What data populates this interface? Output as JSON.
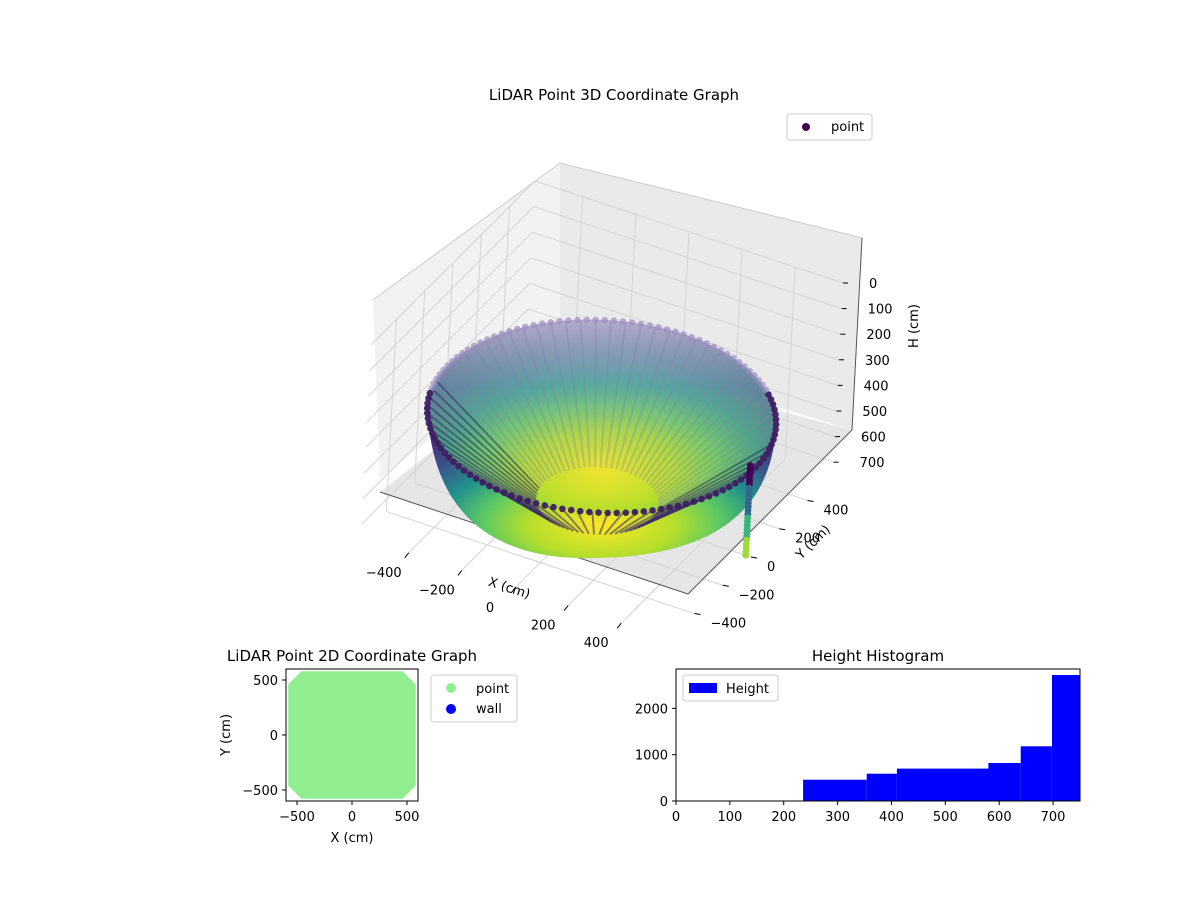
{
  "colors": {
    "viridis_light": "#fde725",
    "viridis_mid": "#21918c",
    "viridis_dark": "#440154",
    "floor_green": "#90ee90",
    "wall_blue": "#0000ff",
    "hist_blue": "#0000ff",
    "pane": "#f2f2f2",
    "grid": "#cfcfcf"
  },
  "chart_data": [
    {
      "type": "scatter",
      "projection": "3d",
      "title": "LiDAR Point 3D Coordinate Graph",
      "xlabel": "X (cm)",
      "ylabel": "Y (cm)",
      "zlabel": "H (cm)",
      "x_ticks": [
        "−400",
        "−200",
        "0",
        "200",
        "400"
      ],
      "y_ticks": [
        "−400",
        "−200",
        "0",
        "200",
        "400"
      ],
      "z_ticks": [
        "0",
        "100",
        "200",
        "300",
        "400",
        "500",
        "600",
        "700"
      ],
      "xlim": [
        -580,
        580
      ],
      "ylim": [
        -580,
        580
      ],
      "zlim": [
        0,
        750
      ],
      "z_inverted": true,
      "surface": {
        "shape": "bowl",
        "rim_radius": 580,
        "rim_height": 400,
        "bottom_height": 750,
        "colormap": "viridis"
      },
      "column": {
        "x": 560,
        "y": 0,
        "z_top": 400,
        "z_bottom": 750
      },
      "legend": {
        "entries": [
          "point"
        ],
        "position": "upper right"
      },
      "grid": true
    },
    {
      "type": "scatter",
      "title": "LiDAR Point 2D Coordinate Graph",
      "xlabel": "X (cm)",
      "ylabel": "Y (cm)",
      "x_ticks": [
        "−500",
        "0",
        "500"
      ],
      "y_ticks": [
        "−500",
        "0",
        "500"
      ],
      "xlim": [
        -600,
        600
      ],
      "ylim": [
        -600,
        600
      ],
      "floor_outline": [
        [
          -580,
          -460
        ],
        [
          -460,
          -580
        ],
        [
          460,
          -580
        ],
        [
          580,
          -460
        ],
        [
          580,
          460
        ],
        [
          460,
          580
        ],
        [
          -460,
          580
        ],
        [
          -580,
          460
        ]
      ],
      "series": [
        {
          "name": "point",
          "color": "#90ee90"
        },
        {
          "name": "wall",
          "color": "#0000ff"
        }
      ],
      "legend": {
        "position": "outside right"
      },
      "grid": false
    },
    {
      "type": "bar",
      "title": "Height Histogram",
      "x_ticks": [
        "0",
        "100",
        "200",
        "300",
        "400",
        "500",
        "600",
        "700"
      ],
      "y_ticks": [
        "0",
        "1000",
        "2000"
      ],
      "xlim": [
        0,
        750
      ],
      "ylim": [
        0,
        2850
      ],
      "bins": [
        {
          "from": 236,
          "to": 354,
          "count": 460
        },
        {
          "from": 354,
          "to": 410,
          "count": 590
        },
        {
          "from": 410,
          "to": 580,
          "count": 700
        },
        {
          "from": 580,
          "to": 640,
          "count": 820
        },
        {
          "from": 640,
          "to": 698,
          "count": 1180
        },
        {
          "from": 698,
          "to": 750,
          "count": 2720
        }
      ],
      "series": [
        {
          "name": "Height",
          "color": "#0000ff"
        }
      ],
      "legend": {
        "position": "upper left"
      },
      "grid": false
    }
  ]
}
